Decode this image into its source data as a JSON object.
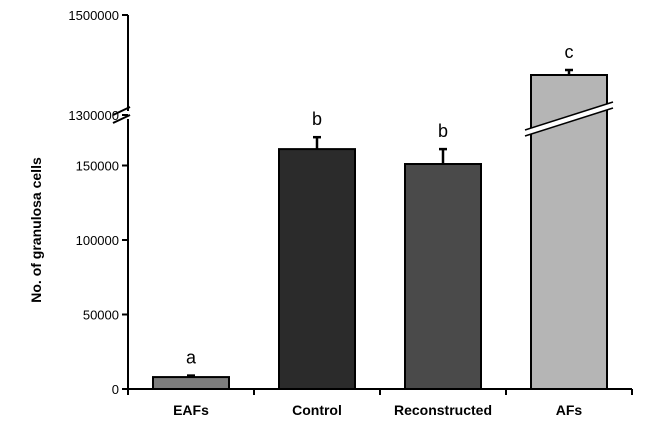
{
  "chart_data": {
    "type": "bar",
    "title": "",
    "xlabel": "",
    "ylabel": "No. of granulosa cells",
    "categories": [
      "EAFs",
      "Control",
      "Reconstructed",
      "AFs"
    ],
    "values": [
      8000,
      161000,
      151000,
      1380000
    ],
    "errors": [
      1000,
      8000,
      10000,
      10000
    ],
    "significance_labels": [
      "a",
      "b",
      "b",
      "c"
    ],
    "bar_colors": [
      "#7d7d7d",
      "#2b2b2b",
      "#4a4a4a",
      "#b5b5b5"
    ],
    "y_axis": {
      "broken": true,
      "lower_segment": {
        "range": [
          0,
          200000
        ],
        "ticks": [
          0,
          50000,
          100000,
          150000
        ],
        "tick_labels": [
          "0",
          "50000",
          "100000",
          "150000"
        ]
      },
      "upper_segment": {
        "range": [
          1250000,
          1500000
        ],
        "ticks": [
          1300000,
          1500000
        ],
        "tick_labels": [
          "1300000",
          "1500000"
        ]
      }
    },
    "grid": false,
    "legend": "none"
  }
}
